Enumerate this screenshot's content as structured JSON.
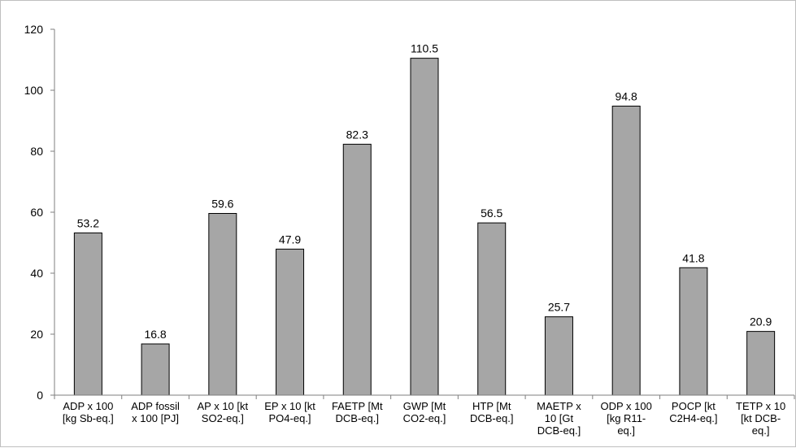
{
  "chart_data": {
    "type": "bar",
    "categories": [
      [
        "ADP x 100",
        "[kg Sb-eq.]"
      ],
      [
        "ADP fossil",
        "x 100 [PJ]"
      ],
      [
        "AP x 10 [kt",
        "SO2-eq.]"
      ],
      [
        "EP x 10 [kt",
        "PO4-eq.]"
      ],
      [
        "FAETP [Mt",
        "DCB-eq.]"
      ],
      [
        "GWP [Mt",
        "CO2-eq.]"
      ],
      [
        "HTP [Mt",
        "DCB-eq.]"
      ],
      [
        "MAETP x",
        "10 [Gt",
        "DCB-eq.]"
      ],
      [
        "ODP x 100",
        "[kg R11-",
        "eq.]"
      ],
      [
        "POCP [kt",
        "C2H4-eq.]"
      ],
      [
        "TETP x 10",
        "[kt DCB-",
        "eq.]"
      ]
    ],
    "values": [
      53.2,
      16.8,
      59.6,
      47.9,
      82.3,
      110.5,
      56.5,
      25.7,
      94.8,
      41.8,
      20.9
    ],
    "data_labels": [
      "53.2",
      "16.8",
      "59.6",
      "47.9",
      "82.3",
      "110.5",
      "56.5",
      "25.7",
      "94.8",
      "41.8",
      "20.9"
    ],
    "yticks": [
      0,
      20,
      40,
      60,
      80,
      100,
      120
    ],
    "ylim": [
      0,
      120
    ],
    "title": "",
    "xlabel": "",
    "ylabel": "",
    "grid": false,
    "legend": "none",
    "bar_color": "#a6a6a6",
    "bar_edge_color": "#000000",
    "axis_color": "#7f7f7f"
  }
}
